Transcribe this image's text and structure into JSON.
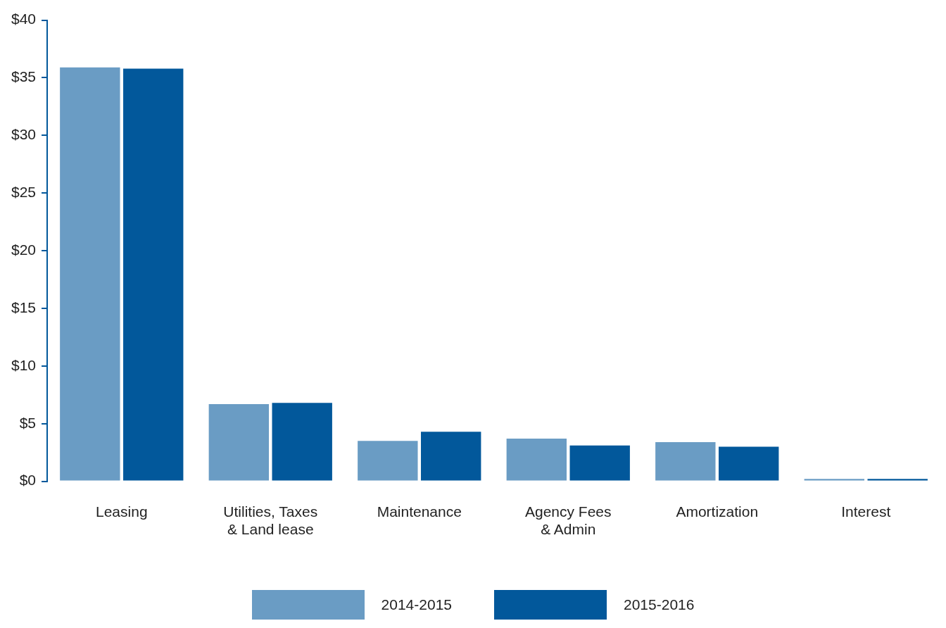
{
  "chart_data": {
    "type": "bar",
    "categories": [
      "Leasing",
      "Utilities, Taxes & Land lease",
      "Maintenance",
      "Agency Fees & Admin",
      "Amortization",
      "Interest"
    ],
    "series": [
      {
        "name": "2014-2015",
        "color": "#6a9cc4",
        "values": [
          35.9,
          6.7,
          3.5,
          3.7,
          3.4,
          0.2
        ]
      },
      {
        "name": "2015-2016",
        "color": "#02589b",
        "values": [
          35.8,
          6.8,
          4.3,
          3.1,
          3.0,
          0.2
        ]
      }
    ],
    "ylim": [
      0,
      40
    ],
    "yticks": [
      {
        "value": 0,
        "label": "$0"
      },
      {
        "value": 5,
        "label": "$5"
      },
      {
        "value": 10,
        "label": "$10"
      },
      {
        "value": 15,
        "label": "$15"
      },
      {
        "value": 20,
        "label": "$20"
      },
      {
        "value": 25,
        "label": "$25"
      },
      {
        "value": 30,
        "label": "$30"
      },
      {
        "value": 35,
        "label": "$35"
      },
      {
        "value": 40,
        "label": "$40"
      }
    ],
    "grid": false,
    "legend": "bottom"
  }
}
